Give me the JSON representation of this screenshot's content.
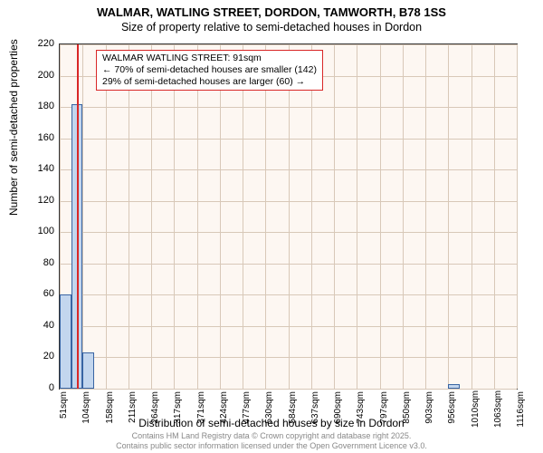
{
  "header": {
    "title_line1": "WALMAR, WATLING STREET, DORDON, TAMWORTH, B78 1SS",
    "title_line2": "Size of property relative to semi-detached houses in Dordon"
  },
  "axes": {
    "y_label": "Number of semi-detached properties",
    "x_label": "Distribution of semi-detached houses by size in Dordon",
    "y_min": 0,
    "y_max": 220,
    "y_tick_step": 20,
    "y_ticks": [
      0,
      20,
      40,
      60,
      80,
      100,
      120,
      140,
      160,
      180,
      200,
      220
    ],
    "x_ticks": [
      "51sqm",
      "104sqm",
      "158sqm",
      "211sqm",
      "264sqm",
      "317sqm",
      "371sqm",
      "424sqm",
      "477sqm",
      "530sqm",
      "584sqm",
      "637sqm",
      "690sqm",
      "743sqm",
      "797sqm",
      "850sqm",
      "903sqm",
      "956sqm",
      "1010sqm",
      "1063sqm",
      "1116sqm"
    ],
    "x_min_sqm": 51,
    "x_max_sqm": 1116
  },
  "chart": {
    "type": "histogram",
    "background_color": "#fdf7f2",
    "grid_color": "#d8c8b8",
    "bar_fill_color": "#c3d6ee",
    "bar_border_color": "#3864a3",
    "marker_color": "#d92727",
    "annotation_border_color": "#d92727",
    "annotation_background": "#ffffff",
    "plot_border_color": "#333333"
  },
  "bars": [
    {
      "start_sqm": 51,
      "end_sqm": 78,
      "count": 60
    },
    {
      "start_sqm": 78,
      "end_sqm": 104,
      "count": 182
    },
    {
      "start_sqm": 104,
      "end_sqm": 131,
      "count": 23
    },
    {
      "start_sqm": 956,
      "end_sqm": 983,
      "count": 3
    }
  ],
  "marker": {
    "sqm": 91,
    "label": "WALMAR WATLING STREET: 91sqm"
  },
  "annotation": {
    "line1": "WALMAR WATLING STREET: 91sqm",
    "line2": "← 70% of semi-detached houses are smaller (142)",
    "line3": "29% of semi-detached houses are larger (60) →"
  },
  "footer": {
    "line1": "Contains HM Land Registry data © Crown copyright and database right 2025.",
    "line2": "Contains public sector information licensed under the Open Government Licence v3.0."
  },
  "typography": {
    "title_fontsize": 13,
    "subtitle_fontsize": 12.5,
    "axis_label_fontsize": 12,
    "tick_fontsize": 11,
    "x_tick_fontsize": 10,
    "annotation_fontsize": 10.5,
    "footer_fontsize": 9
  }
}
